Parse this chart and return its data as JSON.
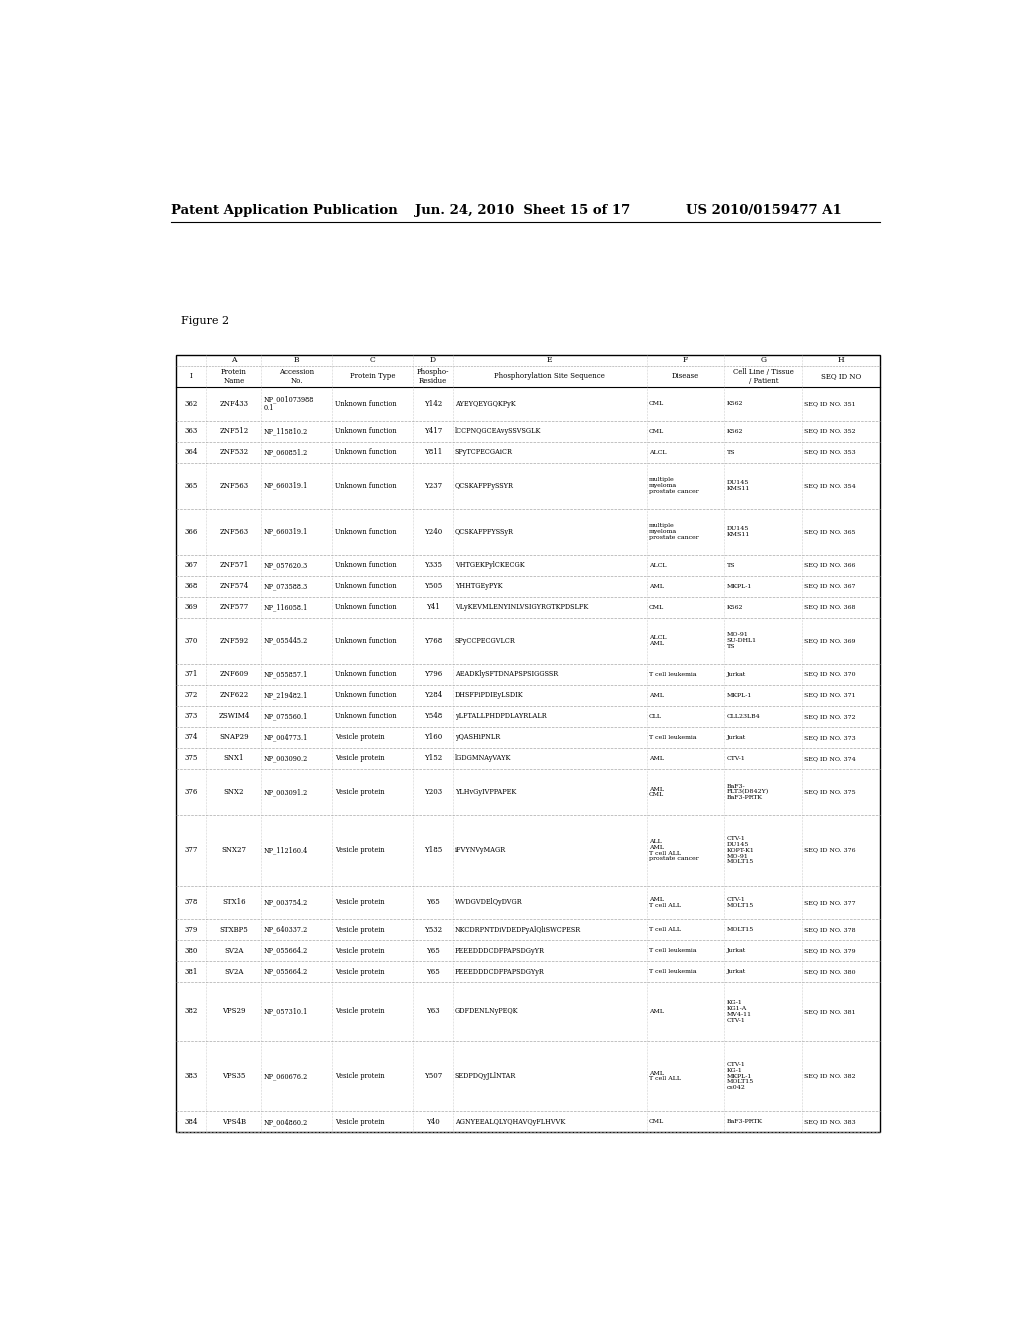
{
  "header_left": "Patent Application Publication",
  "header_mid": "Jun. 24, 2010  Sheet 15 of 17",
  "header_right": "US 2010/0159477 A1",
  "figure_label": "Figure 2",
  "col_letters": [
    "",
    "A",
    "B",
    "C",
    "D",
    "E",
    "F",
    "G",
    "H"
  ],
  "col_labels": [
    "I",
    "Protein\nName",
    "Accession\nNo.",
    "Protein Type",
    "Phospho-\nResidue",
    "Phosphorylation Site Sequence",
    "Disease",
    "Cell Line / Tissue\n/ Patient",
    "SEQ ID NO"
  ],
  "col_widths_rel": [
    0.32,
    0.58,
    0.75,
    0.85,
    0.42,
    2.05,
    0.82,
    0.82,
    0.82
  ],
  "rows": [
    [
      "362",
      "ZNF433",
      "NP_001073988\n0.1",
      "Unknown function",
      "Y142",
      "AYEYQEYGQKPyK",
      "CML",
      "K562",
      "SEQ ID NO. 351"
    ],
    [
      "363",
      "ZNF512",
      "NP_115810.2",
      "Unknown function",
      "Y417",
      "lCCPNQGCEAvySSVSGLK",
      "CML",
      "K562",
      "SEQ ID NO. 352"
    ],
    [
      "364",
      "ZNF532",
      "NP_060851.2",
      "Unknown function",
      "Y811",
      "SPyTCPECGAiCR",
      "ALCL",
      "TS",
      "SEQ ID NO. 353"
    ],
    [
      "365",
      "ZNF563",
      "NP_660319.1",
      "Unknown function",
      "Y237",
      "QCSKAFPFySSYR",
      "multiple\nmyeloma\nprostate cancer",
      "DU145\nKMS11",
      "SEQ ID NO. 354"
    ],
    [
      "366",
      "ZNF563",
      "NP_660319.1",
      "Unknown function",
      "Y240",
      "QCSKAFPFYSSyR",
      "multiple\nmyeloma\nprostate cancer",
      "DU145\nKMS11",
      "SEQ ID NO. 365"
    ],
    [
      "367",
      "ZNF571",
      "NP_057620.3",
      "Unknown function",
      "Y335",
      "VHTGEKPylCKECGK",
      "ALCL",
      "TS",
      "SEQ ID NO. 366"
    ],
    [
      "368",
      "ZNF574",
      "NP_073588.3",
      "Unknown function",
      "Y505",
      "YHHTGEyPYK",
      "AML",
      "MKPL-1",
      "SEQ ID NO. 367"
    ],
    [
      "369",
      "ZNF577",
      "NP_116058.1",
      "Unknown function",
      "Y41",
      "VLyKEVMLENYINLVSIGYRGTKPDSLFK",
      "CML",
      "K562",
      "SEQ ID NO. 368"
    ],
    [
      "370",
      "ZNF592",
      "NP_055445.2",
      "Unknown function",
      "Y768",
      "SPyCCPECGVLCR",
      "ALCL\nAML",
      "MO-91\nSU-DHL1\nTS",
      "SEQ ID NO. 369"
    ],
    [
      "371",
      "ZNF609",
      "NP_055857.1",
      "Unknown function",
      "Y796",
      "AEADKlySFTDNAPSPSIGGSSR",
      "T cell leukemia",
      "Jurkat",
      "SEQ ID NO. 370"
    ],
    [
      "372",
      "ZNF622",
      "NP_219482.1",
      "Unknown function",
      "Y284",
      "DHSFFiPDIEyLSDIK",
      "AML",
      "MKPL-1",
      "SEQ ID NO. 371"
    ],
    [
      "373",
      "ZSWIM4",
      "NP_075560.1",
      "Unknown function",
      "Y548",
      "yLFTALLPHDPDLAYRLALR",
      "CLL",
      "CLL23LB4",
      "SEQ ID NO. 372"
    ],
    [
      "374",
      "SNAP29",
      "NP_004773.1",
      "Vesicle protein",
      "Y160",
      "yQASHiPNLR",
      "T cell leukemia",
      "Jurkat",
      "SEQ ID NO. 373"
    ],
    [
      "375",
      "SNX1",
      "NP_003090.2",
      "Vesicle protein",
      "Y152",
      "lGDGMNAyVAYK",
      "AML",
      "CTV-1",
      "SEQ ID NO. 374"
    ],
    [
      "376",
      "SNX2",
      "NP_003091.2",
      "Vesicle protein",
      "Y203",
      "YLHvGyIVPPAPEK",
      "AML\nCML",
      "BaF3-\nFLT3(D842Y)\nBaF3-PRTK",
      "SEQ ID NO. 375"
    ],
    [
      "377",
      "SNX27",
      "NP_112160.4",
      "Vesicle protein",
      "Y185",
      "iFVYNVyMAGR",
      "ALL\nAML\nT cell ALL\nprostate cancer",
      "CTV-1\nDU145\nKOPT-K1\nMO-91\nMOLT15",
      "SEQ ID NO. 376"
    ],
    [
      "378",
      "STX16",
      "NP_003754.2",
      "Vesicle protein",
      "Y65",
      "WVDGVDElQyDVGR",
      "AML\nT cell ALL",
      "CTV-1\nMOLT15",
      "SEQ ID NO. 377"
    ],
    [
      "379",
      "STXBP5",
      "NP_640337.2",
      "Vesicle protein",
      "Y532",
      "NKCDRPNTDiVDEDPyAlQliSWCPESR",
      "T cell ALL",
      "MOLT15",
      "SEQ ID NO. 378"
    ],
    [
      "380",
      "SV2A",
      "NP_055664.2",
      "Vesicle protein",
      "Y65",
      "FEEEDDDCDFPAPSDGyYR",
      "T cell leukemia",
      "Jurkat",
      "SEQ ID NO. 379"
    ],
    [
      "381",
      "SV2A",
      "NP_055664.2",
      "Vesicle protein",
      "Y65",
      "FEEEDDDCDFPAPSDGYyR",
      "T cell leukemia",
      "Jurkat",
      "SEQ ID NO. 380"
    ],
    [
      "382",
      "VPS29",
      "NP_057310.1",
      "Vesicle protein",
      "Y63",
      "GDFDENLNyPEQK",
      "AML",
      "KG-1\nKG1-A\nMV4-11\nCTV-1",
      "SEQ ID NO. 381"
    ],
    [
      "383",
      "VPS35",
      "NP_060676.2",
      "Vesicle protein",
      "Y507",
      "SEDPDQyJLlNTAR",
      "AML\nT cell ALL",
      "CTV-1\nKG-1\nMKPL-1\nMOLT15\ncs042",
      "SEQ ID NO. 382"
    ],
    [
      "384",
      "VPS4B",
      "NP_004860.2",
      "Vesicle protein",
      "Y40",
      "AGNYEEALQLYQHAVQyFLHVVK",
      "CML",
      "BaF3-PRTK",
      "SEQ ID NO. 383"
    ]
  ],
  "row_line_counts": [
    2,
    1,
    1,
    3,
    3,
    1,
    1,
    1,
    3,
    1,
    1,
    1,
    1,
    1,
    3,
    5,
    2,
    1,
    1,
    1,
    4,
    5,
    1
  ]
}
